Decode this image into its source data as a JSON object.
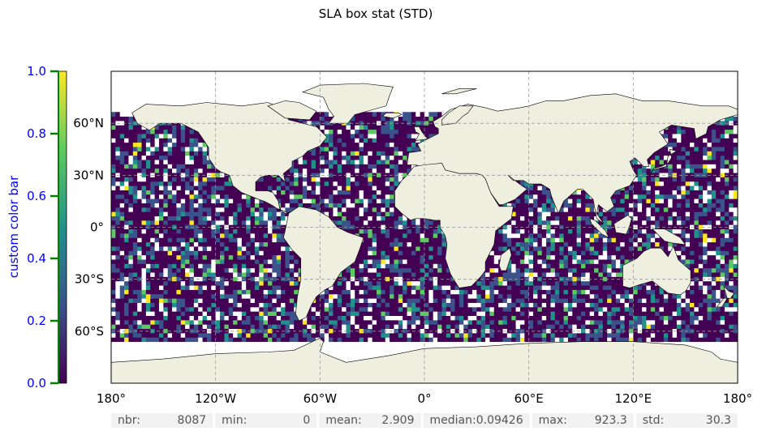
{
  "chart_data": {
    "type": "heatmap",
    "title": "SLA box stat (STD)",
    "xlim": [
      -180,
      180
    ],
    "ylim": [
      -90,
      90
    ],
    "x_ticks": [
      -180,
      -120,
      -60,
      0,
      60,
      120,
      180
    ],
    "x_tick_labels": [
      "180°",
      "120°W",
      "60°W",
      "0°",
      "60°E",
      "120°E",
      "180°"
    ],
    "y_ticks": [
      60,
      30,
      0,
      -30,
      -60
    ],
    "y_tick_labels": [
      "60°N",
      "30°N",
      "0°",
      "30°S",
      "60°S"
    ],
    "grid": true,
    "colorbar": {
      "label": "custom color bar",
      "range": [
        0,
        1
      ],
      "ticks": [
        0.0,
        0.2,
        0.4,
        0.6,
        0.8,
        1.0
      ],
      "tick_labels": [
        "0.0",
        "0.2",
        "0.4",
        "0.6",
        "0.8",
        "1.0"
      ],
      "colormap": "viridis",
      "colors": [
        "#440154",
        "#3b528b",
        "#21918c",
        "#5ec962",
        "#fde725"
      ]
    },
    "data_lat_range": [
      -66,
      66
    ]
  },
  "stats": [
    {
      "label": "nbr:",
      "value": "8087"
    },
    {
      "label": "min:",
      "value": "0"
    },
    {
      "label": "mean:",
      "value": "2.909"
    },
    {
      "label": "median:",
      "value": "0.09426"
    },
    {
      "label": "max:",
      "value": "923.3"
    },
    {
      "label": "std:",
      "value": "30.3"
    }
  ],
  "colors": {
    "land": "#efefdf",
    "missing": "#ffffff",
    "colorbar_axis": "#0000ff",
    "colorbar_ticks": "#008000",
    "grid": "#999999"
  }
}
